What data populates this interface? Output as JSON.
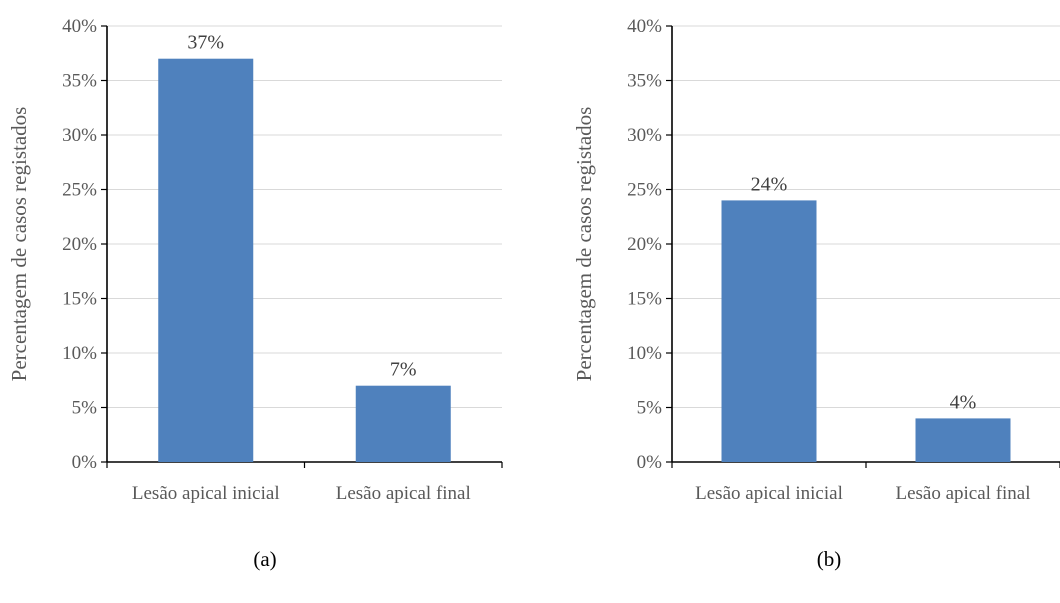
{
  "chart_data": [
    {
      "type": "bar",
      "panel_label": "(a)",
      "categories": [
        "Lesão apical inicial",
        "Lesão apical final"
      ],
      "values": [
        37,
        7
      ],
      "data_labels": [
        "37%",
        "7%"
      ],
      "ylabel": "Percentagem de casos registados",
      "ylim": [
        0,
        40
      ],
      "yticks": [
        "0%",
        "5%",
        "10%",
        "15%",
        "20%",
        "25%",
        "30%",
        "35%",
        "40%"
      ],
      "grid": true,
      "bar_color": "#4F81BD"
    },
    {
      "type": "bar",
      "panel_label": "(b)",
      "categories": [
        "Lesão apical inicial",
        "Lesão apical final"
      ],
      "values": [
        24,
        4
      ],
      "data_labels": [
        "24%",
        "4%"
      ],
      "ylabel": "Percentagem de casos registados",
      "ylim": [
        0,
        40
      ],
      "yticks": [
        "0%",
        "5%",
        "10%",
        "15%",
        "20%",
        "25%",
        "30%",
        "35%",
        "40%"
      ],
      "grid": true,
      "bar_color": "#4F81BD"
    }
  ]
}
